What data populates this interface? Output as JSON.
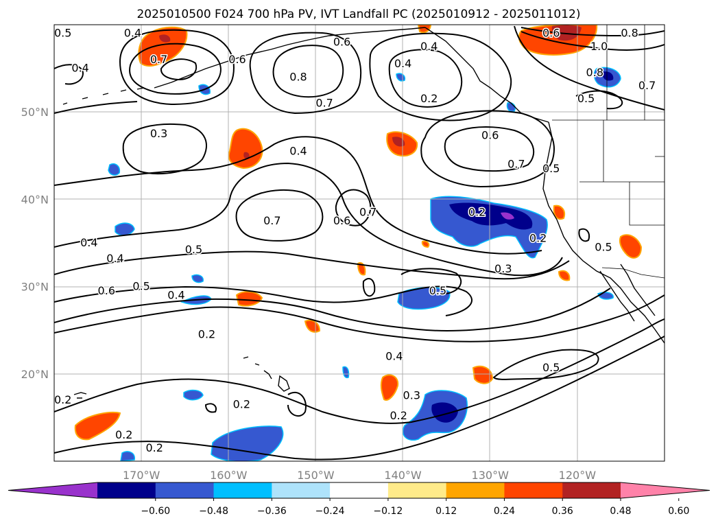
{
  "title": "2025010500 F024 700 hPa PV, IVT Landfall PC (2025010912 - 2025011012)",
  "map": {
    "lon_range": [
      -180,
      -110
    ],
    "lat_range": [
      10,
      60
    ],
    "lat_ticks": [
      {
        "value": 50,
        "label": "50°N"
      },
      {
        "value": 40,
        "label": "40°N"
      },
      {
        "value": 30,
        "label": "30°N"
      },
      {
        "value": 20,
        "label": "20°N"
      }
    ],
    "lon_ticks": [
      {
        "value": -170,
        "label": "170°W"
      },
      {
        "value": -160,
        "label": "160°W"
      },
      {
        "value": -150,
        "label": "150°W"
      },
      {
        "value": -140,
        "label": "140°W"
      },
      {
        "value": -130,
        "label": "130°W"
      },
      {
        "value": -120,
        "label": "120°W"
      }
    ],
    "gridlines": true,
    "contour_labels": [
      {
        "text": "0.5",
        "lon": -179,
        "lat": 59
      },
      {
        "text": "0.4",
        "lon": -171,
        "lat": 59
      },
      {
        "text": "0.7",
        "lon": -168,
        "lat": 56
      },
      {
        "text": "0.4",
        "lon": -177,
        "lat": 55
      },
      {
        "text": "0.6",
        "lon": -159,
        "lat": 56
      },
      {
        "text": "0.8",
        "lon": -152,
        "lat": 54
      },
      {
        "text": "0.6",
        "lon": -147,
        "lat": 58
      },
      {
        "text": "0.7",
        "lon": -149,
        "lat": 51
      },
      {
        "text": "0.4",
        "lon": -137,
        "lat": 57.5
      },
      {
        "text": "0.4",
        "lon": -140,
        "lat": 55.5
      },
      {
        "text": "0.2",
        "lon": -137,
        "lat": 51.5
      },
      {
        "text": "0.6",
        "lon": -123,
        "lat": 59
      },
      {
        "text": "0.8",
        "lon": -114,
        "lat": 59
      },
      {
        "text": "1.0",
        "lon": -117.5,
        "lat": 57.5
      },
      {
        "text": "0.8",
        "lon": -118,
        "lat": 54.5
      },
      {
        "text": "0.7",
        "lon": -112,
        "lat": 53
      },
      {
        "text": "0.5",
        "lon": -119,
        "lat": 51.5
      },
      {
        "text": "0.3",
        "lon": -168,
        "lat": 47.5
      },
      {
        "text": "0.4",
        "lon": -152,
        "lat": 45.5
      },
      {
        "text": "0.6",
        "lon": -130,
        "lat": 47.3
      },
      {
        "text": "0.7",
        "lon": -127,
        "lat": 44
      },
      {
        "text": "0.5",
        "lon": -123,
        "lat": 43.5
      },
      {
        "text": "0.7",
        "lon": -155,
        "lat": 37.5
      },
      {
        "text": "0.6",
        "lon": -147,
        "lat": 37.5
      },
      {
        "text": "0.7",
        "lon": -144,
        "lat": 38.5
      },
      {
        "text": "0.2",
        "lon": -131.5,
        "lat": 38.5
      },
      {
        "text": "0.2",
        "lon": -124.5,
        "lat": 35.5
      },
      {
        "text": "0.5",
        "lon": -117,
        "lat": 34.5
      },
      {
        "text": "0.4",
        "lon": -176,
        "lat": 35
      },
      {
        "text": "0.4",
        "lon": -173,
        "lat": 33.2
      },
      {
        "text": "0.5",
        "lon": -164,
        "lat": 34.2
      },
      {
        "text": "0.3",
        "lon": -128.5,
        "lat": 32
      },
      {
        "text": "0.5",
        "lon": -136,
        "lat": 29.5
      },
      {
        "text": "0.6",
        "lon": -174,
        "lat": 29.5
      },
      {
        "text": "0.5",
        "lon": -170,
        "lat": 30
      },
      {
        "text": "0.4",
        "lon": -166,
        "lat": 29
      },
      {
        "text": "0.2",
        "lon": -162.5,
        "lat": 24.5
      },
      {
        "text": "0.4",
        "lon": -141,
        "lat": 22
      },
      {
        "text": "0.5",
        "lon": -123,
        "lat": 20.7
      },
      {
        "text": "0.3",
        "lon": -139,
        "lat": 17.5
      },
      {
        "text": "0.2",
        "lon": -140.5,
        "lat": 15.2
      },
      {
        "text": "0.2",
        "lon": -158.5,
        "lat": 16.5
      },
      {
        "text": "0.2",
        "lon": -179,
        "lat": 17
      },
      {
        "text": "0.2",
        "lon": -172,
        "lat": 13
      },
      {
        "text": "0.2",
        "lon": -168.5,
        "lat": 11.5
      }
    ]
  },
  "colorbar": {
    "tick_labels": [
      "−0.60",
      "−0.48",
      "−0.36",
      "−0.24",
      "−0.12",
      "0.12",
      "0.24",
      "0.36",
      "0.48",
      "0.60"
    ],
    "colors": [
      "#9932cc",
      "#00008b",
      "#3658d0",
      "#00bfff",
      "#aee3fb",
      "#ffffff",
      "#ffeb8a",
      "#ffa500",
      "#ff4500",
      "#b22222",
      "#ff82a9"
    ]
  }
}
